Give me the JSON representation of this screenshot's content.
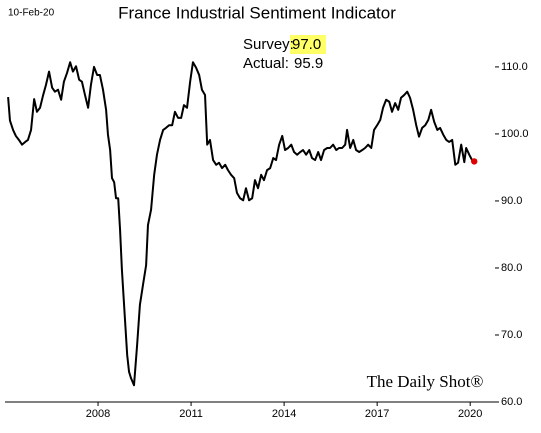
{
  "chart_data": {
    "type": "line",
    "title": "France Industrial Sentiment Indicator",
    "date_label": "10-Feb-20",
    "survey_label": "Survey:",
    "survey_value": "97.0",
    "actual_label": "Actual:",
    "actual_value": "95.9",
    "source": "The Daily Shot®",
    "color": "#000000",
    "last_point_color": "#e00000",
    "highlight_color": "#ffff66",
    "xlim": [
      2005,
      2020.8
    ],
    "xticks": [
      2008,
      2011,
      2014,
      2017,
      2020
    ],
    "ylim": [
      60,
      117
    ],
    "yticks": [
      {
        "value": 60,
        "label": "60.0"
      },
      {
        "value": 70,
        "label": "70.0"
      },
      {
        "value": 80,
        "label": "80.0"
      },
      {
        "value": 90,
        "label": "90.0"
      },
      {
        "value": 100,
        "label": "100.0"
      },
      {
        "value": 110,
        "label": "110.0"
      }
    ],
    "grid": false,
    "y_axis_side": "right",
    "x": [
      2005.1,
      2005.16,
      2005.26,
      2005.35,
      2005.45,
      2005.55,
      2005.65,
      2005.74,
      2005.84,
      2005.94,
      2006.03,
      2006.13,
      2006.23,
      2006.32,
      2006.42,
      2006.52,
      2006.61,
      2006.71,
      2006.81,
      2006.9,
      2007.0,
      2007.1,
      2007.19,
      2007.29,
      2007.39,
      2007.48,
      2007.58,
      2007.68,
      2007.77,
      2007.87,
      2007.97,
      2008.06,
      2008.16,
      2008.26,
      2008.32,
      2008.39,
      2008.45,
      2008.52,
      2008.58,
      2008.65,
      2008.71,
      2008.77,
      2008.87,
      2008.94,
      2009.0,
      2009.06,
      2009.16,
      2009.26,
      2009.35,
      2009.45,
      2009.55,
      2009.61,
      2009.71,
      2009.81,
      2009.9,
      2010.0,
      2010.1,
      2010.19,
      2010.29,
      2010.39,
      2010.48,
      2010.58,
      2010.68,
      2010.77,
      2010.87,
      2010.97,
      2011.06,
      2011.16,
      2011.26,
      2011.35,
      2011.45,
      2011.52,
      2011.61,
      2011.71,
      2011.81,
      2011.9,
      2012.0,
      2012.1,
      2012.19,
      2012.29,
      2012.39,
      2012.48,
      2012.58,
      2012.68,
      2012.77,
      2012.87,
      2012.97,
      2013.06,
      2013.16,
      2013.26,
      2013.35,
      2013.45,
      2013.55,
      2013.65,
      2013.74,
      2013.84,
      2013.94,
      2014.03,
      2014.13,
      2014.23,
      2014.32,
      2014.42,
      2014.52,
      2014.61,
      2014.71,
      2014.81,
      2014.9,
      2015.0,
      2015.1,
      2015.19,
      2015.29,
      2015.39,
      2015.48,
      2015.58,
      2015.68,
      2015.77,
      2015.87,
      2015.97,
      2016.03,
      2016.13,
      2016.23,
      2016.32,
      2016.42,
      2016.52,
      2016.61,
      2016.71,
      2016.81,
      2016.9,
      2017.0,
      2017.1,
      2017.19,
      2017.29,
      2017.39,
      2017.48,
      2017.58,
      2017.68,
      2017.77,
      2017.87,
      2017.97,
      2018.06,
      2018.16,
      2018.26,
      2018.35,
      2018.45,
      2018.55,
      2018.65,
      2018.74,
      2018.84,
      2018.94,
      2019.03,
      2019.13,
      2019.23,
      2019.32,
      2019.42,
      2019.52,
      2019.61,
      2019.71,
      2019.81,
      2019.87,
      2019.97,
      2020.06,
      2020.13
    ],
    "values": [
      105.5,
      102,
      100.6,
      99.7,
      99.1,
      98.4,
      98.8,
      99.1,
      100.6,
      105.2,
      103.3,
      103.9,
      105.8,
      107.3,
      109.3,
      106.9,
      106.3,
      106.6,
      105.1,
      107.8,
      109.1,
      110.7,
      109.3,
      110.1,
      108.1,
      107.8,
      105.8,
      103.9,
      107.3,
      110,
      108.8,
      108.8,
      106.6,
      103.6,
      99.9,
      97.6,
      93.4,
      92.8,
      90.4,
      90.4,
      85.7,
      79.7,
      72.2,
      67,
      64.5,
      63.6,
      62.5,
      68.5,
      74.5,
      77.5,
      80.4,
      86.4,
      88.7,
      93.9,
      96.9,
      99.1,
      100.6,
      100.9,
      101.3,
      101.3,
      103.3,
      102.4,
      102.4,
      104.3,
      103.9,
      107.8,
      110.7,
      109.9,
      108.8,
      106.6,
      105.8,
      98.4,
      99.1,
      96.1,
      95.4,
      95.7,
      94.9,
      95.4,
      94.6,
      93.9,
      93.4,
      91.2,
      90.4,
      90.1,
      91.9,
      90.1,
      90.4,
      93.1,
      91.9,
      93.9,
      93.1,
      94.6,
      94.9,
      96.4,
      96.1,
      98.4,
      99.7,
      97.6,
      97.9,
      98.4,
      97.3,
      96.9,
      97.3,
      97.6,
      96.9,
      97.6,
      96.4,
      96.1,
      97.3,
      96.1,
      97.6,
      97.9,
      97.9,
      98.4,
      97.6,
      97.9,
      97.9,
      98.4,
      100.6,
      97.9,
      99.1,
      97.6,
      97.3,
      97.6,
      97.9,
      98.4,
      97.9,
      100.6,
      101.3,
      102.1,
      103.9,
      105.1,
      104.8,
      103.3,
      104.6,
      103.6,
      105.4,
      105.8,
      106.3,
      105.4,
      103.6,
      101.3,
      99.6,
      100.9,
      101.3,
      102.1,
      103.6,
      101.8,
      100.6,
      100.9,
      99.9,
      99.1,
      98.8,
      99.1,
      95.4,
      95.7,
      98.4,
      95.8,
      97.9,
      96.9,
      96.1,
      95.9
    ]
  }
}
